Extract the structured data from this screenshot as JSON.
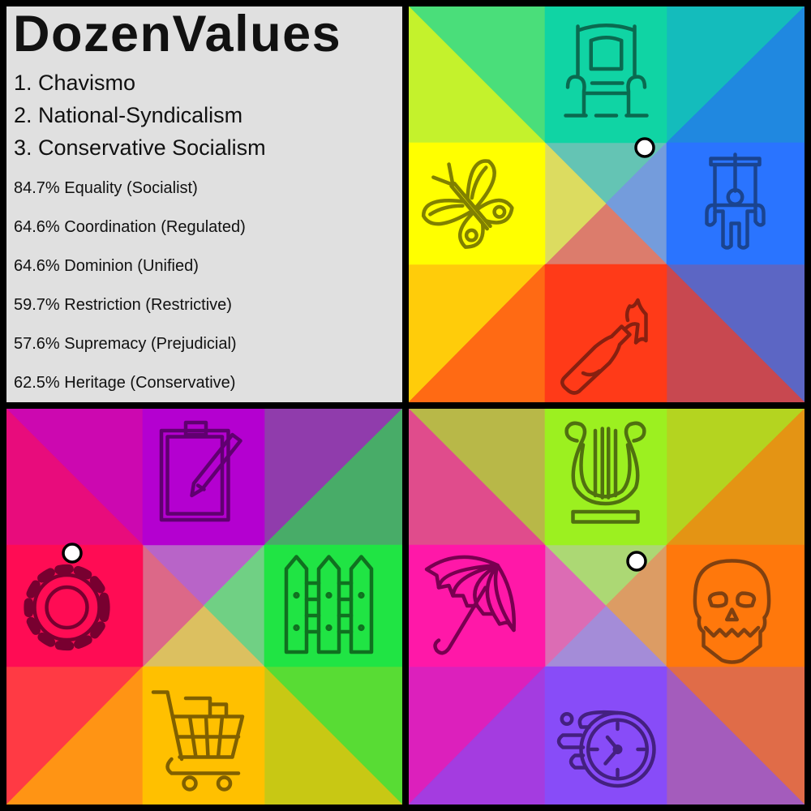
{
  "title": "DozenValues",
  "rankings": [
    "1. Chavismo",
    "2. National-Syndicalism",
    "3. Conservative Socialism"
  ],
  "stats": [
    "84.7% Equality (Socialist)",
    "64.6% Coordination (Regulated)",
    "64.6% Dominion (Unified)",
    "59.7% Restriction (Restrictive)",
    "57.6% Supremacy (Prejudicial)",
    "62.5% Heritage (Conservative)"
  ],
  "panels": {
    "top_right": {
      "icons": {
        "top": "throne-icon",
        "left": "butterfly-icon",
        "right": "puppet-icon",
        "bottom": "molotov-cocktail-icon"
      },
      "colors": {
        "tl_top": "#4ade7a",
        "tl_left": "#c4f22c",
        "tr_top": "#14bcbc",
        "tr_right": "#2088e0",
        "bl_left": "#ffcc0a",
        "bl_bottom": "#ff6a14",
        "br_right": "#5c66c4",
        "br_bottom": "#c84850",
        "c_top": "#64c4b4",
        "c_right": "#749cdc",
        "c_bottom": "#dc7c6c",
        "c_left": "#dcdc60",
        "e_top": "#10d4a4",
        "e_left": "#ffff00",
        "e_right": "#2a74ff",
        "e_bottom": "#ff3a18"
      },
      "icon_colors": {
        "top": "#0a6a50",
        "left": "#808000",
        "right": "#1a4490",
        "bottom": "#882010"
      }
    },
    "bottom_left": {
      "icons": {
        "top": "clipboard-icon",
        "left": "gear-icon",
        "right": "fence-icon",
        "bottom": "shopping-cart-icon"
      },
      "colors": {
        "tl_top": "#cc08b0",
        "tl_left": "#e80c7c",
        "tr_top": "#903cac",
        "tr_right": "#48ac68",
        "bl_left": "#ff3a44",
        "bl_bottom": "#ff9414",
        "br_right": "#58dc34",
        "br_bottom": "#c8c814",
        "c_top": "#b864c8",
        "c_right": "#70d084",
        "c_bottom": "#dcc060",
        "c_left": "#dc6888",
        "e_top": "#b400d0",
        "e_left": "#ff0c54",
        "e_right": "#20e444",
        "e_bottom": "#ffc000"
      },
      "icon_colors": {
        "top": "#600070",
        "left": "#780030",
        "right": "#107020",
        "bottom": "#806000"
      }
    },
    "bottom_right": {
      "icons": {
        "top": "lyre-icon",
        "left": "umbrella-icon",
        "right": "skull-icon",
        "bottom": "speeding-clock-icon"
      },
      "colors": {
        "tl_top": "#b8b848",
        "tl_left": "#e04c8c",
        "tr_top": "#b4d420",
        "tr_right": "#e49414",
        "bl_left": "#dc20bc",
        "bl_bottom": "#a43ce0",
        "br_right": "#e06c48",
        "br_bottom": "#a45cbc",
        "c_top": "#acd874",
        "c_right": "#dc9c64",
        "c_bottom": "#a48cd8",
        "c_left": "#dc6cb4",
        "e_top": "#9cf020",
        "e_left": "#ff18a8",
        "e_right": "#ff780c",
        "e_bottom": "#884cf8"
      },
      "icon_colors": {
        "top": "#507010",
        "left": "#780050",
        "right": "#804010",
        "bottom": "#442080"
      }
    }
  }
}
